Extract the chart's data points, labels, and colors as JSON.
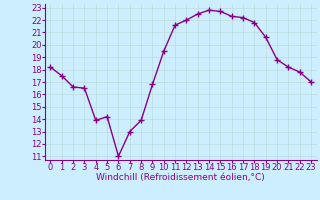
{
  "x": [
    0,
    1,
    2,
    3,
    4,
    5,
    6,
    7,
    8,
    9,
    10,
    11,
    12,
    13,
    14,
    15,
    16,
    17,
    18,
    19,
    20,
    21,
    22,
    23
  ],
  "y": [
    18.2,
    17.5,
    16.6,
    16.5,
    13.9,
    14.2,
    11.0,
    13.0,
    13.9,
    16.8,
    19.5,
    21.6,
    22.0,
    22.5,
    22.8,
    22.7,
    22.3,
    22.2,
    21.8,
    20.6,
    18.8,
    18.2,
    17.8,
    17.0
  ],
  "line_color": "#880088",
  "marker": "+",
  "bg_color": "#cceeff",
  "grid_color": "#bbdddd",
  "xlabel": "Windchill (Refroidissement éolien,°C)",
  "xlabel_color": "#880088",
  "tick_color": "#880088",
  "spine_color": "#880088",
  "xlim_min": -0.5,
  "xlim_max": 23.5,
  "ylim_min": 10.7,
  "ylim_max": 23.3,
  "yticks": [
    11,
    12,
    13,
    14,
    15,
    16,
    17,
    18,
    19,
    20,
    21,
    22,
    23
  ],
  "xticks": [
    0,
    1,
    2,
    3,
    4,
    5,
    6,
    7,
    8,
    9,
    10,
    11,
    12,
    13,
    14,
    15,
    16,
    17,
    18,
    19,
    20,
    21,
    22,
    23
  ],
  "xlabel_fontsize": 6.5,
  "tick_fontsize": 6.0,
  "linewidth": 1.0,
  "marker_size": 4,
  "marker_edge_width": 1.0
}
